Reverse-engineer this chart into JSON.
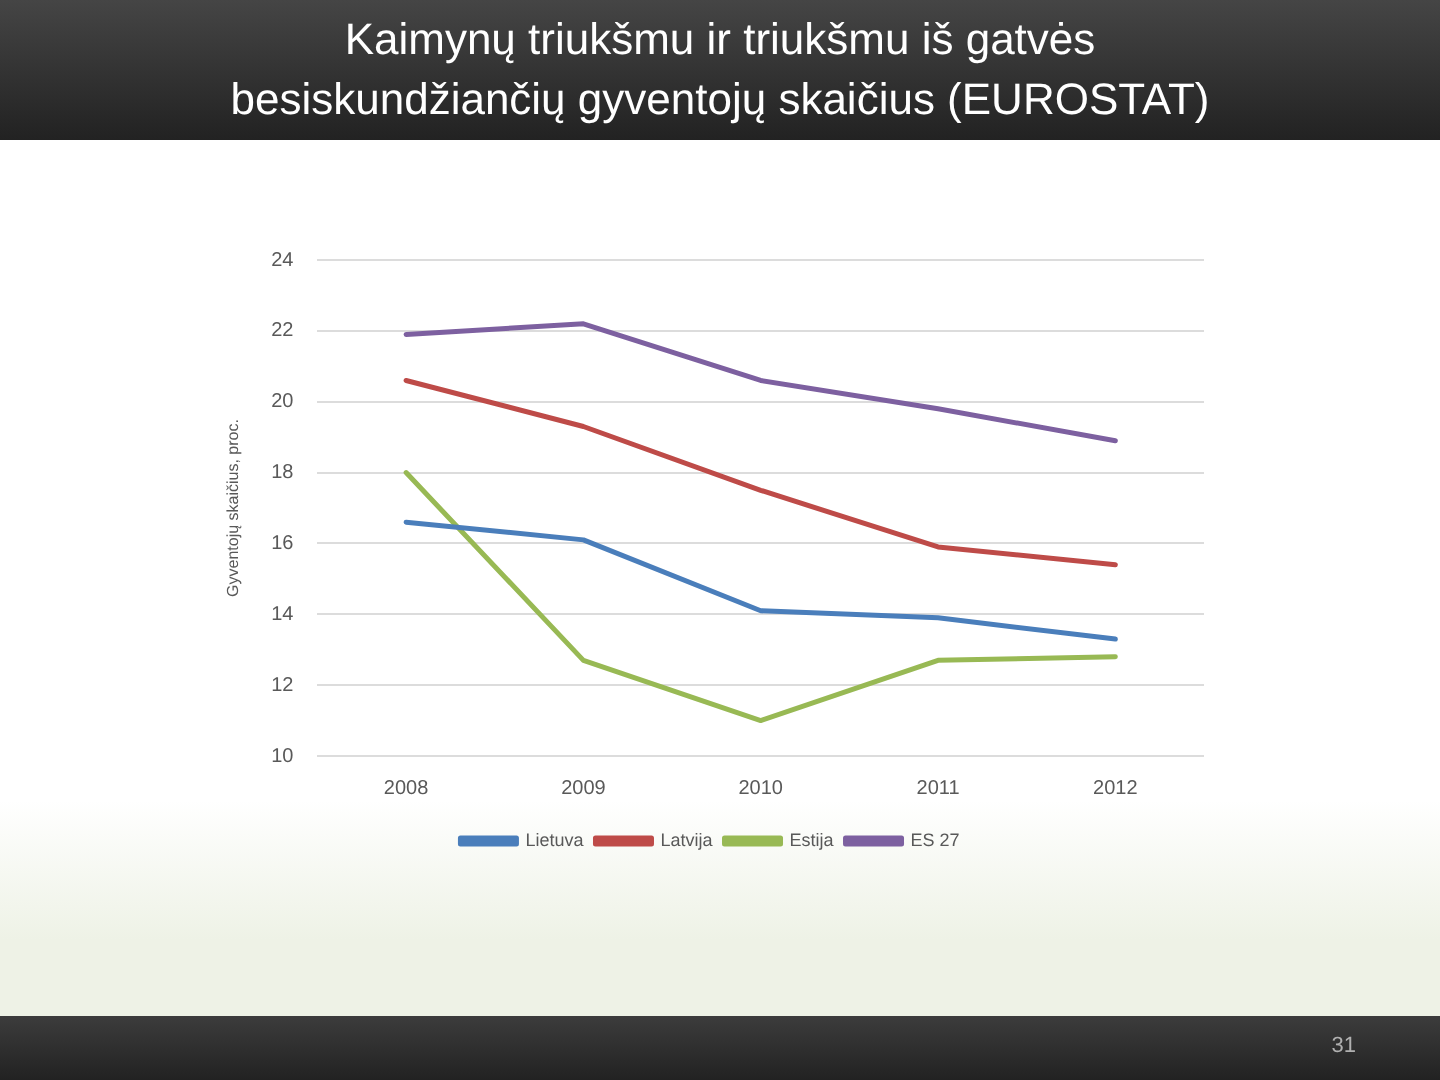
{
  "chart_data": {
    "type": "line",
    "title": "Kaimynų triukšmu ir triukšmu iš gatvės besiskundžiančių gyventojų skaičius (EUROSTAT)",
    "ylabel": "Gyventojų skaičius, proc.",
    "categories": [
      "2008",
      "2009",
      "2010",
      "2011",
      "2012"
    ],
    "series": [
      {
        "name": "Lietuva",
        "color": "#4a7ebb",
        "values": [
          16.6,
          16.1,
          14.1,
          13.9,
          13.3
        ]
      },
      {
        "name": "Latvija",
        "color": "#be4b48",
        "values": [
          20.6,
          19.3,
          17.5,
          15.9,
          15.4
        ]
      },
      {
        "name": "Estija",
        "color": "#98b954",
        "values": [
          18.0,
          12.7,
          11.0,
          12.7,
          12.8
        ]
      },
      {
        "name": "ES 27",
        "color": "#7d60a0",
        "values": [
          21.9,
          22.2,
          20.6,
          19.8,
          18.9
        ]
      }
    ],
    "ylim": [
      10,
      24
    ],
    "yticks": [
      10,
      12,
      14,
      16,
      18,
      20,
      22,
      24
    ],
    "grid": "y",
    "legend": "bottom",
    "marker": "none",
    "line_style": "solid",
    "annotations": [
      "31"
    ]
  }
}
